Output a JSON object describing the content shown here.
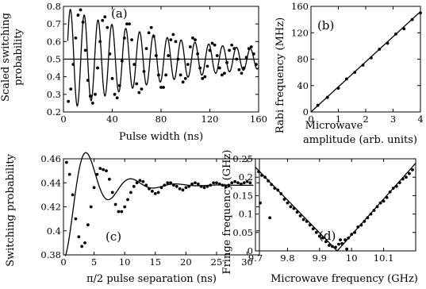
{
  "chart_data": [
    {
      "type": "scatter",
      "panel": "(a)",
      "xlabel": "Pulse width (ns)",
      "ylabel": "Scaled switching probability",
      "xlim": [
        0,
        160
      ],
      "ylim": [
        0.2,
        0.8
      ],
      "xticks": [
        0,
        40,
        80,
        120,
        160
      ],
      "yticks": [
        0.2,
        0.3,
        0.4,
        0.5,
        0.6,
        0.7,
        0.8
      ],
      "reference_line": 0.5,
      "model": {
        "kind": "damped_cosine",
        "baseline": 0.5,
        "amplitude0": 0.3,
        "decay_time_ns": 95,
        "period_ns": 11.35,
        "x_start": 3.5,
        "x_end": 160
      },
      "series": [
        {
          "role": "data",
          "x": [
            4,
            6,
            8,
            10,
            12,
            14,
            16,
            18,
            20,
            22,
            24,
            26,
            28,
            30,
            32,
            34,
            36,
            38,
            40,
            42,
            44,
            46,
            48,
            50,
            52,
            54,
            56,
            58,
            60,
            62,
            64,
            66,
            68,
            70,
            72,
            74,
            76,
            78,
            80,
            82,
            84,
            86,
            88,
            90,
            92,
            94,
            96,
            98,
            100,
            102,
            104,
            106,
            108,
            110,
            112,
            114,
            116,
            118,
            120,
            122,
            124,
            126,
            128,
            130,
            132,
            134,
            136,
            138,
            140,
            142,
            144,
            146,
            148,
            150,
            152,
            154,
            156,
            158
          ],
          "y": [
            0.26,
            0.33,
            0.47,
            0.62,
            0.75,
            0.78,
            0.71,
            0.55,
            0.38,
            0.29,
            0.25,
            0.3,
            0.45,
            0.6,
            0.72,
            0.74,
            0.68,
            0.53,
            0.39,
            0.3,
            0.28,
            0.35,
            0.49,
            0.62,
            0.7,
            0.7,
            0.61,
            0.47,
            0.36,
            0.31,
            0.33,
            0.43,
            0.56,
            0.65,
            0.68,
            0.63,
            0.52,
            0.41,
            0.34,
            0.34,
            0.41,
            0.52,
            0.61,
            0.64,
            0.6,
            0.5,
            0.41,
            0.37,
            0.39,
            0.47,
            0.57,
            0.62,
            0.61,
            0.53,
            0.45,
            0.39,
            0.4,
            0.46,
            0.55,
            0.59,
            0.58,
            0.52,
            0.45,
            0.41,
            0.42,
            0.48,
            0.55,
            0.58,
            0.56,
            0.5,
            0.44,
            0.42,
            0.45,
            0.51,
            0.56,
            0.57,
            0.53,
            0.47
          ]
        }
      ]
    },
    {
      "type": "scatter",
      "panel": "(b)",
      "xlabel": "Microwave amplitude (arb. units)",
      "ylabel": "Rabi frequency (MHz)",
      "xlim": [
        0,
        4
      ],
      "ylim": [
        0,
        160
      ],
      "xticks": [
        0,
        1,
        2,
        3,
        4
      ],
      "yticks": [
        0,
        40,
        80,
        120,
        160
      ],
      "fit": {
        "x": [
          0,
          4
        ],
        "y": [
          0,
          152
        ]
      },
      "series": [
        {
          "role": "data",
          "x": [
            0.25,
            0.6,
            1.0,
            1.3,
            1.6,
            1.9,
            2.2,
            2.5,
            2.8,
            3.1,
            3.4,
            3.7,
            4.0
          ],
          "y": [
            10,
            22,
            36,
            50,
            60,
            71,
            82,
            95,
            104,
            118,
            126,
            140,
            150
          ]
        }
      ]
    },
    {
      "type": "scatter",
      "panel": "(c)",
      "xlabel": "π/2 pulse separation (ns)",
      "ylabel": "Switching probability",
      "xlim": [
        0,
        32
      ],
      "ylim": [
        0.38,
        0.46
      ],
      "xticks": [
        0,
        5,
        10,
        15,
        20,
        25,
        30
      ],
      "yticks": [
        0.38,
        0.4,
        0.42,
        0.44,
        0.46
      ],
      "model": {
        "kind": "damped_cosine",
        "baseline": 0.438,
        "amplitude0": 0.059,
        "decay_time_ns": 4.5,
        "period_ns": 7.3,
        "phase_shift_ns": 0.3,
        "x_start": 0.3,
        "x_end": 31
      },
      "series": [
        {
          "role": "data",
          "x": [
            0.5,
            1,
            1.5,
            2,
            2.5,
            3,
            3.5,
            4,
            4.5,
            5,
            5.5,
            6,
            6.5,
            7,
            7.5,
            8,
            8.5,
            9,
            9.5,
            10,
            10.5,
            11,
            11.5,
            12,
            12.5,
            13,
            13.5,
            14,
            14.5,
            15,
            15.5,
            16,
            16.5,
            17,
            17.5,
            18,
            18.5,
            19,
            19.5,
            20,
            20.5,
            21,
            21.5,
            22,
            22.5,
            23,
            23.5,
            24,
            24.5,
            25,
            25.5,
            26,
            26.5,
            27,
            27.5,
            28,
            28.5,
            29,
            29.5,
            30,
            30.5
          ],
          "y": [
            0.457,
            0.447,
            0.43,
            0.41,
            0.395,
            0.387,
            0.39,
            0.405,
            0.42,
            0.436,
            0.447,
            0.452,
            0.451,
            0.45,
            0.443,
            0.432,
            0.422,
            0.416,
            0.416,
            0.42,
            0.426,
            0.432,
            0.437,
            0.44,
            0.442,
            0.441,
            0.438,
            0.435,
            0.433,
            0.431,
            0.432,
            0.436,
            0.438,
            0.44,
            0.44,
            0.438,
            0.437,
            0.435,
            0.434,
            0.436,
            0.437,
            0.439,
            0.44,
            0.439,
            0.437,
            0.436,
            0.437,
            0.438,
            0.44,
            0.44,
            0.439,
            0.438,
            0.437,
            0.438,
            0.44,
            0.441,
            0.44,
            0.439,
            0.44,
            0.441,
            0.44
          ]
        }
      ]
    },
    {
      "type": "scatter",
      "panel": "(d)",
      "xlabel": "Microwave frequency (GHz)",
      "ylabel": "Fringe frequency (GHz)",
      "xlim": [
        9.7,
        10.2
      ],
      "ylim": [
        0,
        0.25
      ],
      "xticks": [
        9.7,
        9.8,
        9.9,
        10,
        10.1
      ],
      "yticks": [
        0,
        0.05,
        0.1,
        0.15,
        0.2,
        0.25
      ],
      "fit": {
        "x": [
          9.7,
          9.955,
          10.2
        ],
        "y": [
          0.227,
          0,
          0.238
        ]
      },
      "series": [
        {
          "role": "data",
          "x": [
            9.71,
            9.72,
            9.73,
            9.74,
            9.75,
            9.76,
            9.77,
            9.78,
            9.79,
            9.8,
            9.81,
            9.82,
            9.83,
            9.84,
            9.85,
            9.86,
            9.87,
            9.88,
            9.89,
            9.9,
            9.91,
            9.92,
            9.93,
            9.94,
            9.95,
            9.96,
            9.97,
            9.98,
            9.99,
            10.0,
            10.01,
            10.02,
            10.03,
            10.04,
            10.05,
            10.06,
            10.07,
            10.08,
            10.09,
            10.1,
            10.11,
            10.12,
            10.13,
            10.14,
            10.15,
            10.16,
            10.17,
            10.18,
            10.19,
            9.715,
            9.745,
            9.965,
            9.985
          ],
          "y": [
            0.215,
            0.205,
            0.2,
            0.19,
            0.18,
            0.17,
            0.165,
            0.155,
            0.14,
            0.13,
            0.12,
            0.115,
            0.105,
            0.095,
            0.085,
            0.08,
            0.07,
            0.06,
            0.05,
            0.04,
            0.035,
            0.025,
            0.015,
            0.012,
            0.01,
            0.018,
            0.02,
            0.03,
            0.035,
            0.045,
            0.05,
            0.065,
            0.07,
            0.08,
            0.09,
            0.1,
            0.11,
            0.12,
            0.13,
            0.135,
            0.145,
            0.16,
            0.17,
            0.175,
            0.185,
            0.195,
            0.2,
            0.21,
            0.22,
            0.13,
            0.09,
            0.03,
            0.005
          ]
        }
      ]
    }
  ]
}
